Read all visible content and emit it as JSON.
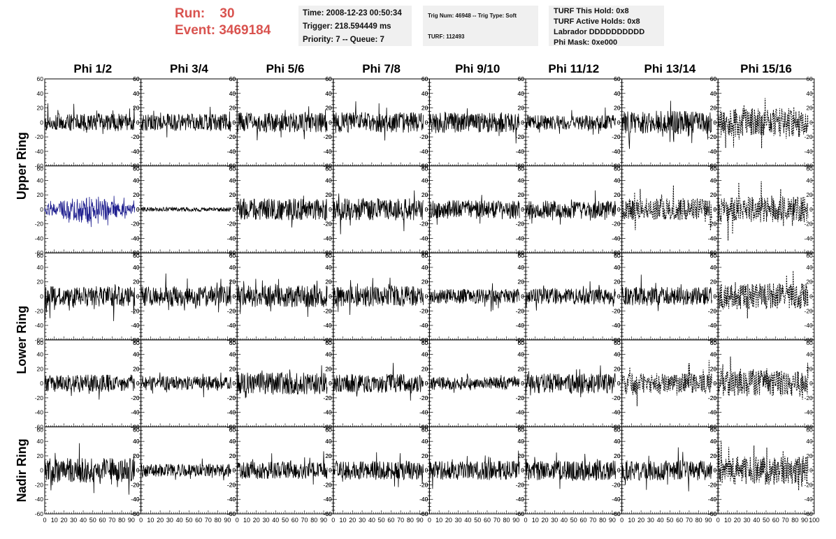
{
  "header": {
    "run_label": "Run:    30",
    "event_label": "Event: 3469184",
    "time_box": {
      "time": "Time: 2008-12-23 00:50:34",
      "trigger": "Trigger: 218.594449 ms",
      "priority": "Priority: 7 -- Queue: 7"
    },
    "trig_box": {
      "trig": "Trig Num: 46948 -- Trig Type: Soft",
      "turf": "TURF: 112493"
    },
    "turf_box": {
      "this_hold": "TURF This Hold: 0x8",
      "active_holds": "TURF Active Holds: 0x8",
      "labrador": "Labrador DDDDDDDDDD",
      "phi_mask": "Phi Mask: 0xe000"
    },
    "colors": {
      "run_text": "#d9534f",
      "box_bg": "#f0f0f0"
    }
  },
  "columns": [
    "Phi 1/2",
    "Phi 3/4",
    "Phi 5/6",
    "Phi 7/8",
    "Phi 9/10",
    "Phi 11/12",
    "Phi 13/14",
    "Phi 15/16"
  ],
  "ring_labels": [
    "Upper Ring",
    "Lower Ring",
    "Nadir Ring"
  ],
  "chart_data": {
    "type": "line",
    "xlim": [
      0,
      100
    ],
    "ylim": [
      -60,
      60
    ],
    "y_ticks": [
      "60",
      "40",
      "20",
      "0",
      "-20",
      "-40",
      "-60"
    ],
    "x_tick_labels": [
      "0",
      "10",
      "20",
      "30",
      "40",
      "50",
      "60",
      "70",
      "80",
      "90",
      "100"
    ],
    "grid": false,
    "rows": 5,
    "cols": 8,
    "panels": [
      [
        "solid-12",
        "solid-12",
        "solid-14",
        "solid-14",
        "solid-14",
        "solid-10",
        "solid-16",
        "dashed-20"
      ],
      [
        "blue-20",
        "flat-3",
        "solid-15",
        "solid-15",
        "solid-13",
        "solid-13",
        "dashed-15",
        "dashed-18"
      ],
      [
        "solid-14",
        "solid-14",
        "solid-15",
        "solid-14",
        "solid-10",
        "solid-11",
        "solid-13",
        "dashed-18"
      ],
      [
        "solid-12",
        "solid-10",
        "solid-15",
        "solid-13",
        "solid-9",
        "solid-14",
        "dashed-14",
        "dashed-18"
      ],
      [
        "solid-17",
        "solid-9",
        "solid-12",
        "solid-13",
        "solid-13",
        "solid-14",
        "solid-14",
        "dashed-20"
      ]
    ],
    "trace_colors": {
      "solid": "#000000",
      "blue": "#1f1f8f"
    }
  }
}
